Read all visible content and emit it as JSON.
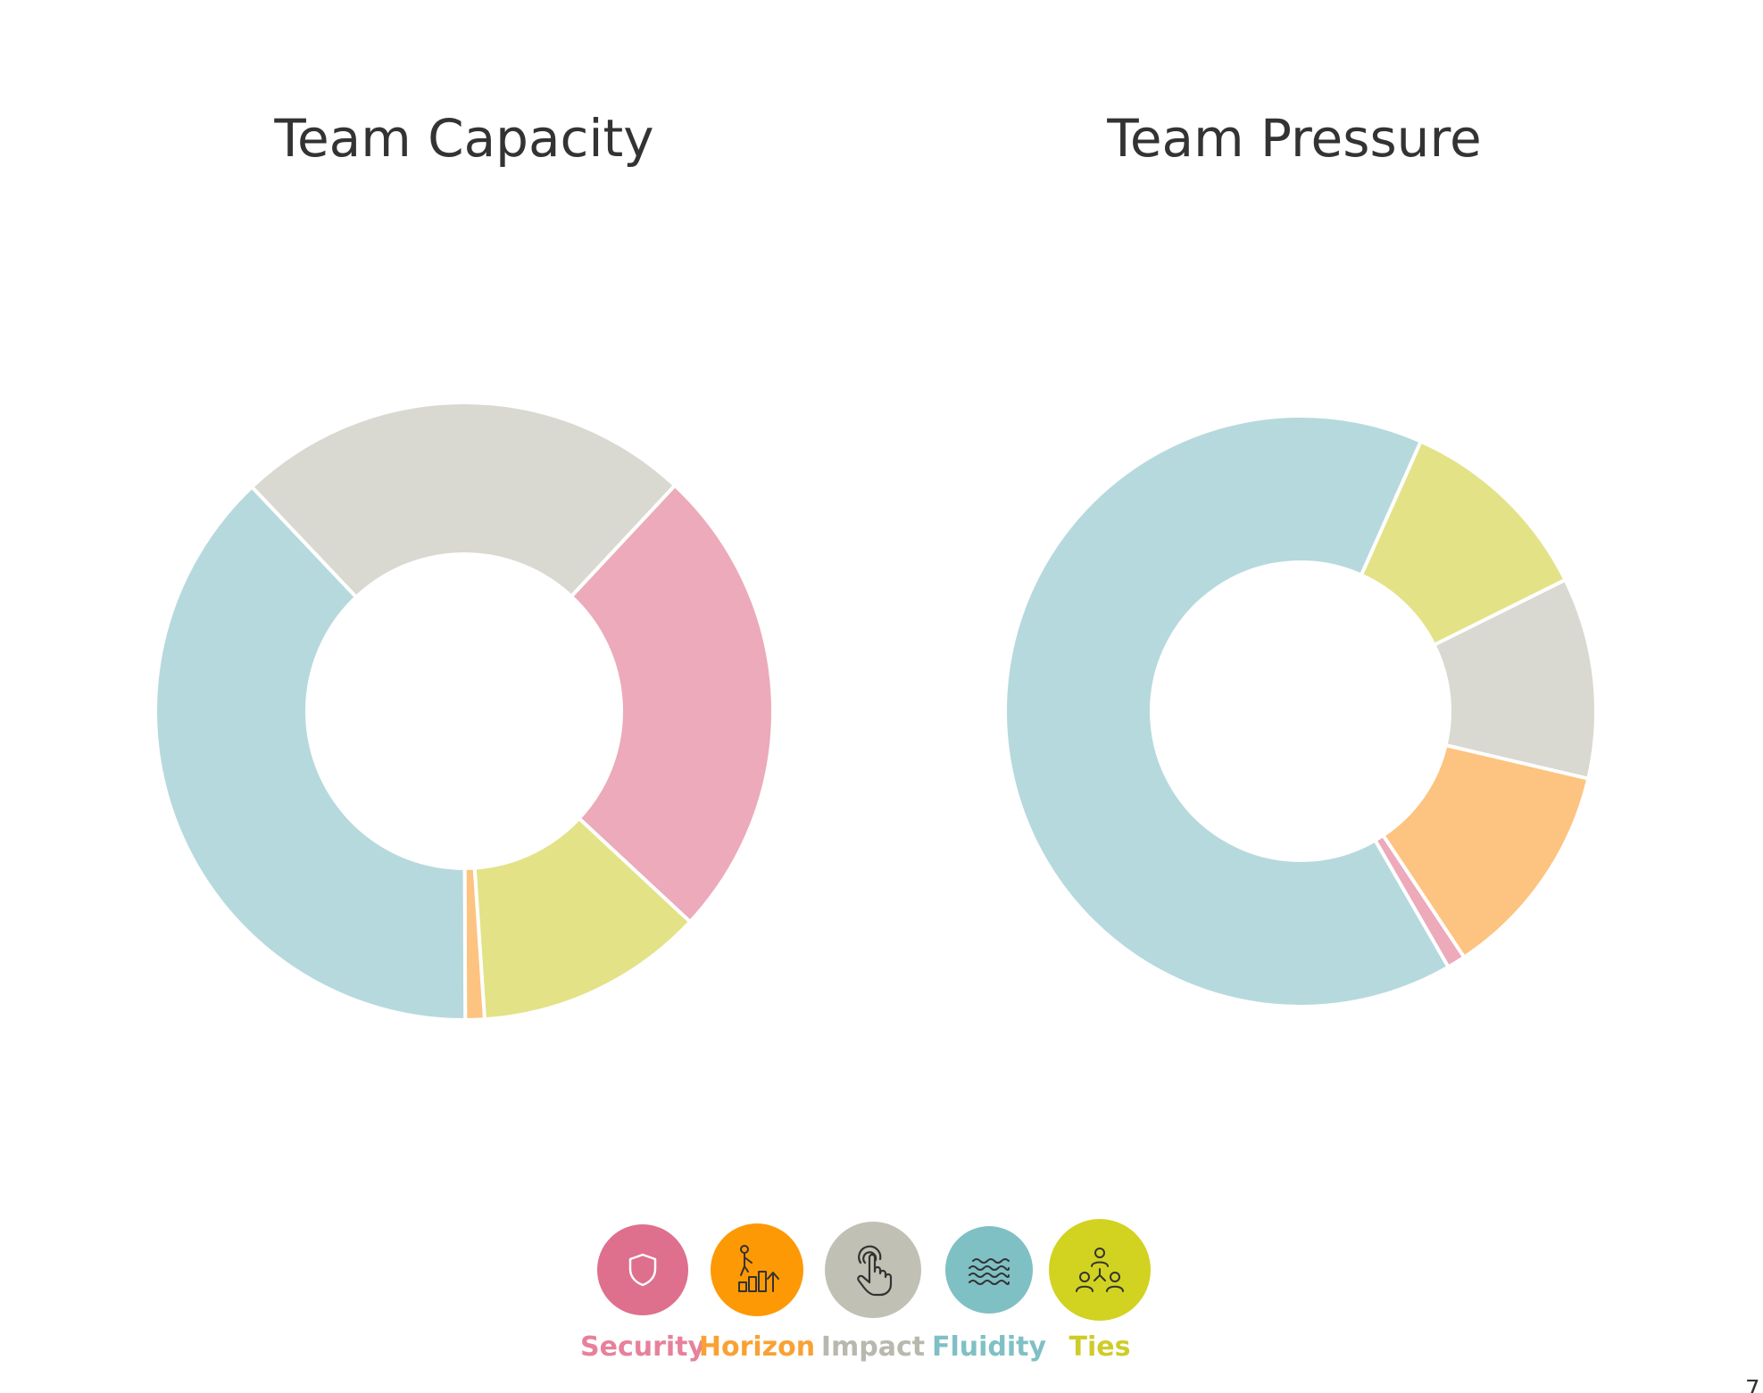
{
  "colors": {
    "Security": "#ecaaba",
    "Horizon": "#fdc380",
    "Impact": "#d9d9d1",
    "Fluidity": "#b6d9dd",
    "Ties": "#e3e287",
    "title_text": "#333333"
  },
  "chart_data": [
    {
      "type": "pie",
      "variant": "donut",
      "title": "Team Capacity",
      "categories": [
        "Security",
        "Horizon",
        "Impact",
        "Fluidity",
        "Ties"
      ],
      "values": [
        25,
        1,
        24,
        38,
        12
      ],
      "order_clockwise_from_top": [
        "Security",
        "Ties",
        "Horizon",
        "Fluidity",
        "Impact"
      ],
      "start_angle_deg": 43,
      "legend": "bottom-center",
      "grid": false
    },
    {
      "type": "pie",
      "variant": "donut",
      "title": "Team Pressure",
      "categories": [
        "Security",
        "Horizon",
        "Impact",
        "Fluidity",
        "Ties"
      ],
      "values": [
        1,
        12,
        11,
        65,
        11
      ],
      "order_clockwise_from_top": [
        "Ties",
        "Impact",
        "Horizon",
        "Security",
        "Fluidity"
      ],
      "start_angle_deg": 24,
      "legend": "bottom-center",
      "grid": false
    }
  ],
  "legend": {
    "items": [
      {
        "label": "Security",
        "icon": "shield-icon",
        "circle_color": "#de6f8d",
        "text_color": "#e7819b"
      },
      {
        "label": "Horizon",
        "icon": "person-climbing-steps-icon",
        "circle_color": "#fd9905",
        "text_color": "#f9a134"
      },
      {
        "label": "Impact",
        "icon": "tap-hand-icon",
        "circle_color": "#c1c0b4",
        "text_color": "#b9b8ae"
      },
      {
        "label": "Fluidity",
        "icon": "waves-icon",
        "circle_color": "#7fc0c5",
        "text_color": "#7fc0c5"
      },
      {
        "label": "Ties",
        "icon": "people-network-icon",
        "circle_color": "#d2d220",
        "text_color": "#cfcc2a"
      }
    ]
  },
  "page_number": "7"
}
